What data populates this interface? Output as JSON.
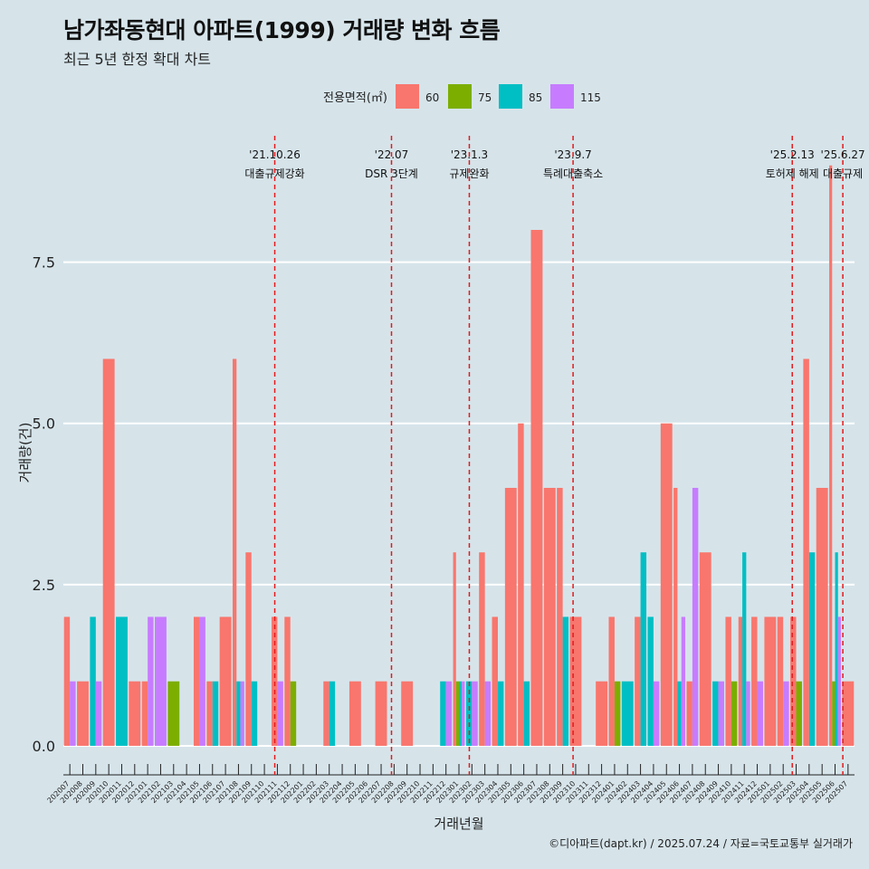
{
  "header": {
    "title": "남가좌동현대 아파트(1999) 거래량 변화 흐름",
    "subtitle": "최근 5년 한정 확대 차트",
    "caption": "©디아파트(dapt.kr) / 2025.07.24 / 자료=국토교통부 실거래가"
  },
  "colors": {
    "background": "#d6e4ea",
    "60": "#f8766d",
    "75": "#7cae00",
    "85": "#00bfc4",
    "115": "#c77cff",
    "event_line": "#e31a1c"
  },
  "chart_data": {
    "type": "bar",
    "title": "남가좌동현대 아파트(1999) 거래량 변화 흐름",
    "subtitle": "최근 5년 한정 확대 차트",
    "xlabel": "거래년월",
    "ylabel": "거래량(건)",
    "ylim": [
      -0.45,
      9.6
    ],
    "yticks": [
      0.0,
      2.5,
      5.0,
      7.5
    ],
    "ytick_labels": [
      "0.0",
      "2.5",
      "5.0",
      "7.5"
    ],
    "legend": {
      "title": "전용면적(㎡)",
      "position": "top",
      "entries": [
        "60",
        "75",
        "85",
        "115"
      ]
    },
    "categories": [
      "202007",
      "202008",
      "202009",
      "202010",
      "202011",
      "202012",
      "202101",
      "202102",
      "202103",
      "202104",
      "202105",
      "202106",
      "202107",
      "202108",
      "202109",
      "202110",
      "202111",
      "202112",
      "202201",
      "202202",
      "202203",
      "202204",
      "202205",
      "202206",
      "202207",
      "202208",
      "202209",
      "202210",
      "202211",
      "202212",
      "202301",
      "202302",
      "202303",
      "202304",
      "202305",
      "202306",
      "202307",
      "202308",
      "202309",
      "202310",
      "202311",
      "202312",
      "202401",
      "202402",
      "202403",
      "202404",
      "202405",
      "202406",
      "202407",
      "202408",
      "202409",
      "202410",
      "202411",
      "202412",
      "202501",
      "202502",
      "202503",
      "202504",
      "202505",
      "202506",
      "202507"
    ],
    "series": [
      {
        "name": "60",
        "values": [
          2,
          1,
          0,
          6,
          0,
          1,
          1,
          0,
          0,
          0,
          2,
          1,
          2,
          6,
          3,
          0,
          2,
          2,
          0,
          0,
          1,
          0,
          1,
          0,
          1,
          0,
          1,
          0,
          0,
          0,
          3,
          0,
          3,
          2,
          4,
          5,
          8,
          4,
          4,
          2,
          0,
          1,
          2,
          0,
          2,
          0,
          5,
          4,
          1,
          3,
          0,
          2,
          2,
          2,
          2,
          2,
          2,
          6,
          4,
          9,
          1
        ]
      },
      {
        "name": "75",
        "values": [
          0,
          0,
          0,
          0,
          0,
          0,
          0,
          0,
          1,
          0,
          0,
          0,
          0,
          0,
          0,
          0,
          0,
          1,
          0,
          0,
          0,
          0,
          0,
          0,
          0,
          0,
          0,
          0,
          0,
          0,
          1,
          0,
          0,
          0,
          0,
          0,
          0,
          0,
          0,
          0,
          0,
          0,
          1,
          0,
          0,
          0,
          0,
          0,
          0,
          0,
          0,
          1,
          0,
          0,
          0,
          0,
          1,
          0,
          0,
          1,
          0
        ]
      },
      {
        "name": "85",
        "values": [
          0,
          0,
          2,
          0,
          2,
          0,
          0,
          0,
          0,
          0,
          0,
          1,
          0,
          1,
          1,
          0,
          0,
          0,
          0,
          0,
          1,
          0,
          0,
          0,
          0,
          0,
          0,
          0,
          0,
          1,
          1,
          1,
          0,
          1,
          0,
          1,
          0,
          0,
          2,
          0,
          0,
          0,
          0,
          1,
          3,
          2,
          0,
          1,
          0,
          0,
          1,
          0,
          3,
          0,
          0,
          0,
          0,
          3,
          0,
          3,
          0
        ]
      },
      {
        "name": "115",
        "values": [
          1,
          0,
          1,
          0,
          0,
          0,
          2,
          2,
          0,
          0,
          2,
          0,
          0,
          1,
          0,
          0,
          1,
          0,
          0,
          0,
          0,
          0,
          0,
          0,
          0,
          0,
          0,
          0,
          0,
          1,
          1,
          1,
          1,
          0,
          0,
          0,
          0,
          0,
          0,
          0,
          0,
          0,
          0,
          0,
          0,
          1,
          0,
          2,
          4,
          0,
          1,
          0,
          1,
          1,
          0,
          1,
          0,
          0,
          0,
          2,
          0
        ]
      }
    ],
    "events": [
      {
        "date": "'21.10.26",
        "label": "대출규제강화",
        "month_index": 15.8
      },
      {
        "date": "'22.07",
        "label": "DSR 3단계",
        "month_index": 24.8
      },
      {
        "date": "'23.1.3",
        "label": "규제완화",
        "month_index": 30.8
      },
      {
        "date": "'23.9.7",
        "label": "특례대출축소",
        "month_index": 38.8
      },
      {
        "date": "'25.2.13",
        "label": "토허제 해제",
        "month_index": 55.7
      },
      {
        "date": "'25.6.27",
        "label": "대출규제",
        "month_index": 59.6
      }
    ]
  }
}
